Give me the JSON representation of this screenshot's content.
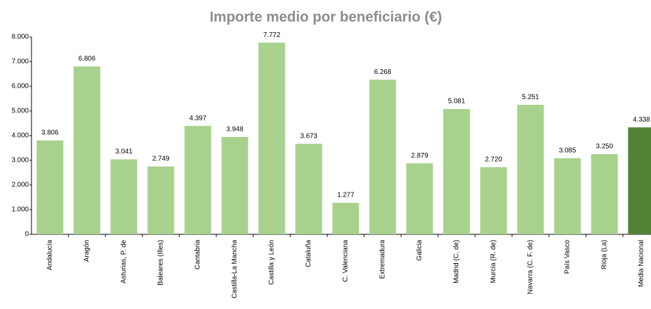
{
  "chart_data": {
    "type": "bar",
    "title": "Importe medio por beneficiario (€)",
    "categories": [
      "Andalucía",
      "Aragón",
      "Asturias, P. de",
      "Baleares (Illes)",
      "Cantabria",
      "Castilla-La Mancha",
      "Castilla y León",
      "Cataluña",
      "C. Valenciana",
      "Extremadura",
      "Galicia",
      "Madrid (C. de)",
      "Murcia (R. de)",
      "Navarra (C. F. de)",
      "País Vasco",
      "Rioja (La)",
      "Media Nacional"
    ],
    "values": [
      3806,
      6806,
      3041,
      2749,
      4397,
      3948,
      7772,
      3673,
      1277,
      6268,
      2879,
      5081,
      2720,
      5251,
      3085,
      3250,
      4338
    ],
    "value_labels": [
      "3.806",
      "6.806",
      "3.041",
      "2.749",
      "4.397",
      "3.948",
      "7.772",
      "3.673",
      "1.277",
      "6.268",
      "2.879",
      "5.081",
      "2.720",
      "5.251",
      "3.085",
      "3.250",
      "4.338"
    ],
    "colors": [
      "#a9d18e",
      "#a9d18e",
      "#a9d18e",
      "#a9d18e",
      "#a9d18e",
      "#a9d18e",
      "#a9d18e",
      "#a9d18e",
      "#a9d18e",
      "#a9d18e",
      "#a9d18e",
      "#a9d18e",
      "#a9d18e",
      "#a9d18e",
      "#a9d18e",
      "#a9d18e",
      "#548235"
    ],
    "ylim": [
      0,
      8000
    ],
    "yticks": [
      0,
      {
        "value": 1000,
        "label": "1.000"
      },
      {
        "value": 2000,
        "label": "2.000"
      },
      {
        "value": 3000,
        "label": "3.000"
      },
      {
        "value": 4000,
        "label": "4.000"
      },
      {
        "value": 5000,
        "label": "5.000"
      },
      {
        "value": 6000,
        "label": "6.000"
      },
      {
        "value": 7000,
        "label": "7.000"
      },
      {
        "value": 8000,
        "label": "8.000"
      }
    ],
    "grid": false
  }
}
